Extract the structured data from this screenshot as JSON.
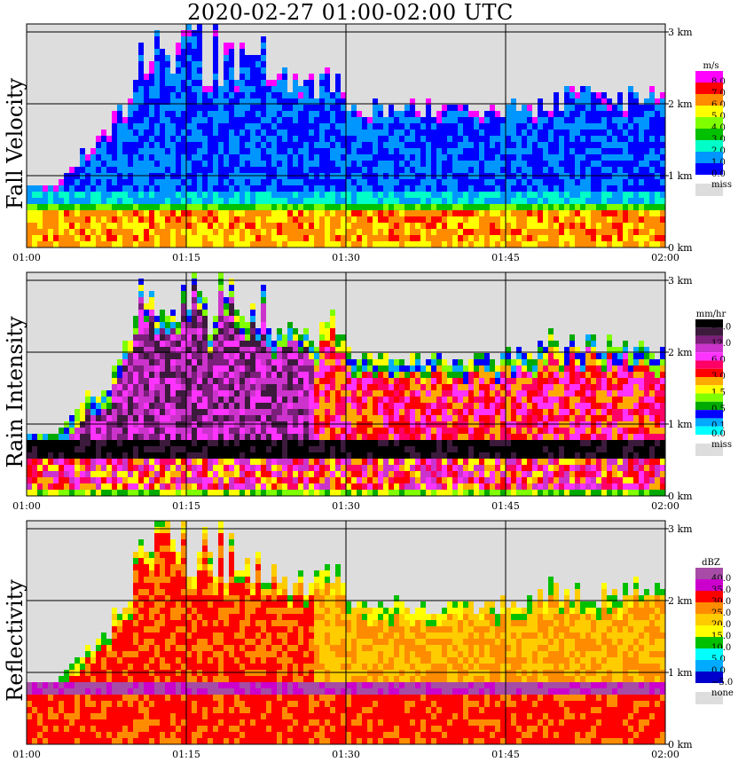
{
  "title": "2020-02-27   01:00-02:00 UTC",
  "chart_data": [
    {
      "type": "heatmap",
      "ylabel": "Fall Velocity",
      "x_ticks": [
        "01:00",
        "01:15",
        "01:30",
        "01:45",
        "02:00"
      ],
      "y_ticks": [
        "0 km",
        "1 km",
        "2 km",
        "3 km"
      ],
      "ylim_km": [
        0,
        3.2
      ],
      "grid": true,
      "legend": {
        "unit": "m/s",
        "position": "right",
        "entries": [
          {
            "label": "8.0",
            "color": "#ff00ff"
          },
          {
            "label": "7.0",
            "color": "#ff0000"
          },
          {
            "label": "6.0",
            "color": "#ff8c00"
          },
          {
            "label": "5.0",
            "color": "#ffff00"
          },
          {
            "label": "4.0",
            "color": "#7fff00"
          },
          {
            "label": "3.0",
            "color": "#00c000"
          },
          {
            "label": "2.0",
            "color": "#00ffc8"
          },
          {
            "label": "1.0",
            "color": "#0096ff"
          },
          {
            "label": "0.0",
            "color": "#0000ff"
          }
        ],
        "missing": {
          "label": "miss",
          "color": "#dddddd"
        }
      }
    },
    {
      "type": "heatmap",
      "ylabel": "Rain Intensity",
      "x_ticks": [
        "01:00",
        "01:15",
        "01:30",
        "01:45",
        "02:00"
      ],
      "y_ticks": [
        "0 km",
        "1 km",
        "2 km",
        "3 km"
      ],
      "ylim_km": [
        0,
        3.2
      ],
      "grid": true,
      "legend": {
        "unit": "mm/hr",
        "position": "right",
        "entries": [
          {
            "label": "48.0",
            "color": "#000000"
          },
          {
            "label": "",
            "color": "#3c1a3c"
          },
          {
            "label": "12.0",
            "color": "#7a1f7a"
          },
          {
            "label": "",
            "color": "#cc33cc"
          },
          {
            "label": "6.0",
            "color": "#ff33ff"
          },
          {
            "label": "",
            "color": "#ff0066"
          },
          {
            "label": "3.0",
            "color": "#ff0000"
          },
          {
            "label": "",
            "color": "#ffaa00"
          },
          {
            "label": "1.5",
            "color": "#ffff00"
          },
          {
            "label": "",
            "color": "#7fff00"
          },
          {
            "label": "0.5",
            "color": "#00aa00"
          },
          {
            "label": "",
            "color": "#0000ff"
          },
          {
            "label": "0.1",
            "color": "#00aaff"
          },
          {
            "label": "0.0",
            "color": "#00ffff"
          }
        ],
        "missing": {
          "label": "miss",
          "color": "#dddddd"
        }
      }
    },
    {
      "type": "heatmap",
      "ylabel": "Reflectivity",
      "x_ticks": [
        "01:00",
        "01:15",
        "01:30",
        "01:45",
        "02:00"
      ],
      "y_ticks": [
        "0 km",
        "1 km",
        "2 km",
        "3 km"
      ],
      "ylim_km": [
        0,
        3.2
      ],
      "grid": true,
      "legend": {
        "unit": "dBZ",
        "position": "right",
        "entries": [
          {
            "label": "40.0",
            "color": "#a64ca6"
          },
          {
            "label": "35.0",
            "color": "#cc00cc"
          },
          {
            "label": "30.0",
            "color": "#ff0000"
          },
          {
            "label": "25.0",
            "color": "#ff8c00"
          },
          {
            "label": "20.0",
            "color": "#ffcc00"
          },
          {
            "label": "15.0",
            "color": "#ffff00"
          },
          {
            "label": "10.0",
            "color": "#00c000"
          },
          {
            "label": "5.0",
            "color": "#00ffff"
          },
          {
            "label": "0.0",
            "color": "#00aaff"
          },
          {
            "label": "−5.0",
            "color": "#0000cc"
          }
        ],
        "missing": {
          "label": "none",
          "color": "#dddddd"
        }
      }
    }
  ]
}
